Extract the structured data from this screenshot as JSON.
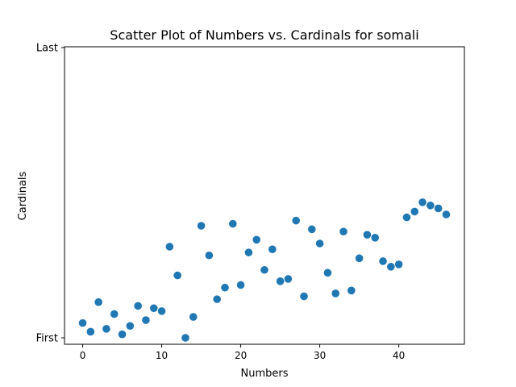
{
  "chart_data": {
    "type": "scatter",
    "title": "Scatter Plot of Numbers vs. Cardinals for somali",
    "xlabel": "Numbers",
    "ylabel": "Cardinals",
    "xlim": [
      -2.3,
      48.3
    ],
    "xticks": [
      0,
      10,
      20,
      30,
      40
    ],
    "ylim": [
      0,
      1
    ],
    "yticks": [
      {
        "value": 0,
        "label": "First"
      },
      {
        "value": 1,
        "label": "Last"
      }
    ],
    "grid": false,
    "marker_color": "#1f77b4",
    "points": [
      {
        "x": 0,
        "y": 0.051
      },
      {
        "x": 1,
        "y": 0.021
      },
      {
        "x": 2,
        "y": 0.123
      },
      {
        "x": 3,
        "y": 0.031
      },
      {
        "x": 4,
        "y": 0.082
      },
      {
        "x": 5,
        "y": 0.012
      },
      {
        "x": 6,
        "y": 0.041
      },
      {
        "x": 7,
        "y": 0.11
      },
      {
        "x": 8,
        "y": 0.061
      },
      {
        "x": 9,
        "y": 0.102
      },
      {
        "x": 10,
        "y": 0.092
      },
      {
        "x": 11,
        "y": 0.314
      },
      {
        "x": 12,
        "y": 0.215
      },
      {
        "x": 13,
        "y": 0.0
      },
      {
        "x": 14,
        "y": 0.072
      },
      {
        "x": 15,
        "y": 0.386
      },
      {
        "x": 16,
        "y": 0.284
      },
      {
        "x": 17,
        "y": 0.133
      },
      {
        "x": 18,
        "y": 0.173
      },
      {
        "x": 19,
        "y": 0.393
      },
      {
        "x": 20,
        "y": 0.182
      },
      {
        "x": 21,
        "y": 0.294
      },
      {
        "x": 22,
        "y": 0.338
      },
      {
        "x": 23,
        "y": 0.234
      },
      {
        "x": 24,
        "y": 0.305
      },
      {
        "x": 25,
        "y": 0.195
      },
      {
        "x": 26,
        "y": 0.203
      },
      {
        "x": 27,
        "y": 0.404
      },
      {
        "x": 28,
        "y": 0.143
      },
      {
        "x": 29,
        "y": 0.374
      },
      {
        "x": 30,
        "y": 0.325
      },
      {
        "x": 31,
        "y": 0.224
      },
      {
        "x": 32,
        "y": 0.153
      },
      {
        "x": 33,
        "y": 0.366
      },
      {
        "x": 34,
        "y": 0.163
      },
      {
        "x": 35,
        "y": 0.274
      },
      {
        "x": 36,
        "y": 0.355
      },
      {
        "x": 37,
        "y": 0.345
      },
      {
        "x": 38,
        "y": 0.264
      },
      {
        "x": 39,
        "y": 0.245
      },
      {
        "x": 40,
        "y": 0.253
      },
      {
        "x": 41,
        "y": 0.415
      },
      {
        "x": 42,
        "y": 0.435
      },
      {
        "x": 43,
        "y": 0.467
      },
      {
        "x": 44,
        "y": 0.456
      },
      {
        "x": 45,
        "y": 0.446
      },
      {
        "x": 46,
        "y": 0.425
      }
    ]
  }
}
